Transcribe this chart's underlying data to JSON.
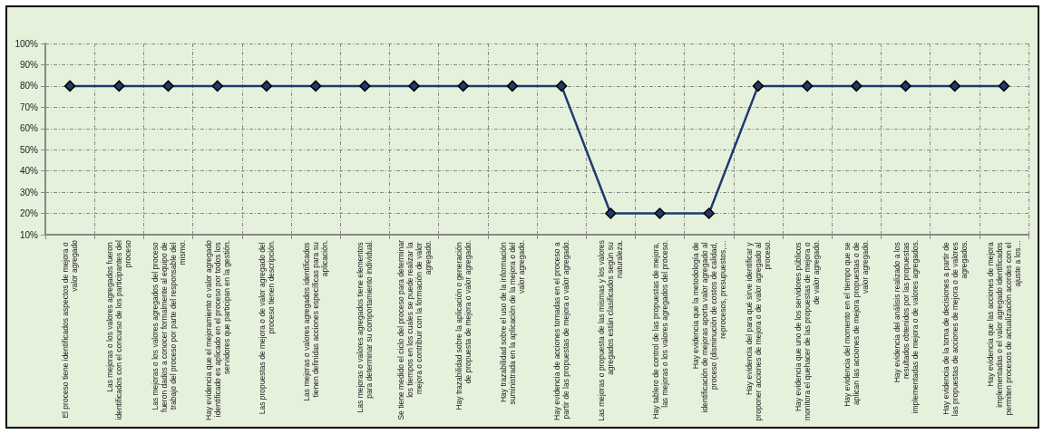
{
  "chart_data": {
    "type": "line",
    "categories": [
      "El proceso tiene identificados aspectos de mejora o valor agregado",
      "Las mejoras o los valores agregados fueron identificados con el concurso de los participantes del proceso",
      "Las mejoras o los valores agregados del proceso fueron dados a conocer formalmente al equipo de trabajo del proceso por parte del responsable del mismo.",
      "Hay evidencia que el mejoramiento o valor agregado identificado es aplicado en el proceso por todos los servidores que participan en la gestión.",
      "Las propuestas de mejora o de valor agregado del proceso tienen descripción.",
      "Las mejoras o valores agregados identificados tienen definidas acciones específicas para su aplicación.",
      "Las mejoras o valores agregados tiene elementos para determinar su comportamiento individual.",
      "Se tiene medido el ciclo del proceso para determinar los tiempos en los cuales se puede realizar la mejora o contribuir con la formación de valor agregado.",
      "Hay trazabilidad sobre la aplicación o generación de propuesta de mejora o valor agregado.",
      "Hay trazabilidad sobre el uso de la información suministrada en la aplicación de la mejora o del valor agregado.",
      "Hay evidencia de acciones tomadas en el proceso a partir de las propuestas de mejora o valor agregado.",
      "Las mejoras o propuesta de las mismas y los valores agregados están clasificados según su naturaleza.",
      "Hay tablero de control de las propuestas de mejora, las mejoras o los valores agregados del proceso.",
      "Hay evidencia que la metodología de identificación de mejoras aporta valor agregado al proceso (disminución de costos de calidad, reprocesos, presupuestos,…",
      "Hay evidencia del para qué sirve identificar y proponer acciones de mejora o de valor agregado al proceso.",
      "Hay evidencia que uno de los servidores públicos monitora el quehacer de las propuestas de mejora o de valor agregado.",
      "Hay evidencia del momento en el tiempo que se aplican las acciones de mejora propuestas o de valor agregado.",
      "Hay evidencia del análisis realizado a los resultados obtenidos por las propuestas implementadas de mejora o de valores agregados.",
      "Hay evidencia de la toma de decisiones a partir de las propuestas de acciones de mejora o de valores agregados.",
      "Hay evidencia que las acciones de mejora implementadas o el valor agregado identificados permiten procesos de actualización acordes con el ajuste a los…"
    ],
    "series": [
      {
        "color": "#1f3a6e",
        "values": [
          80,
          80,
          80,
          80,
          80,
          80,
          80,
          80,
          80,
          80,
          80,
          20,
          20,
          20,
          80,
          80,
          80,
          80,
          80,
          80
        ]
      }
    ],
    "ylim": [
      10,
      100
    ],
    "yticks": [
      {
        "value": 10,
        "label": "10%"
      },
      {
        "value": 20,
        "label": "20%"
      },
      {
        "value": 30,
        "label": "30%"
      },
      {
        "value": 40,
        "label": "40%"
      },
      {
        "value": 50,
        "label": "50%"
      },
      {
        "value": 60,
        "label": "60%"
      },
      {
        "value": 70,
        "label": "70%"
      },
      {
        "value": 80,
        "label": "80%"
      },
      {
        "value": 90,
        "label": "90%"
      },
      {
        "value": 100,
        "label": "100%"
      }
    ],
    "grid": true,
    "marker": "diamond",
    "line_style": "solid"
  }
}
